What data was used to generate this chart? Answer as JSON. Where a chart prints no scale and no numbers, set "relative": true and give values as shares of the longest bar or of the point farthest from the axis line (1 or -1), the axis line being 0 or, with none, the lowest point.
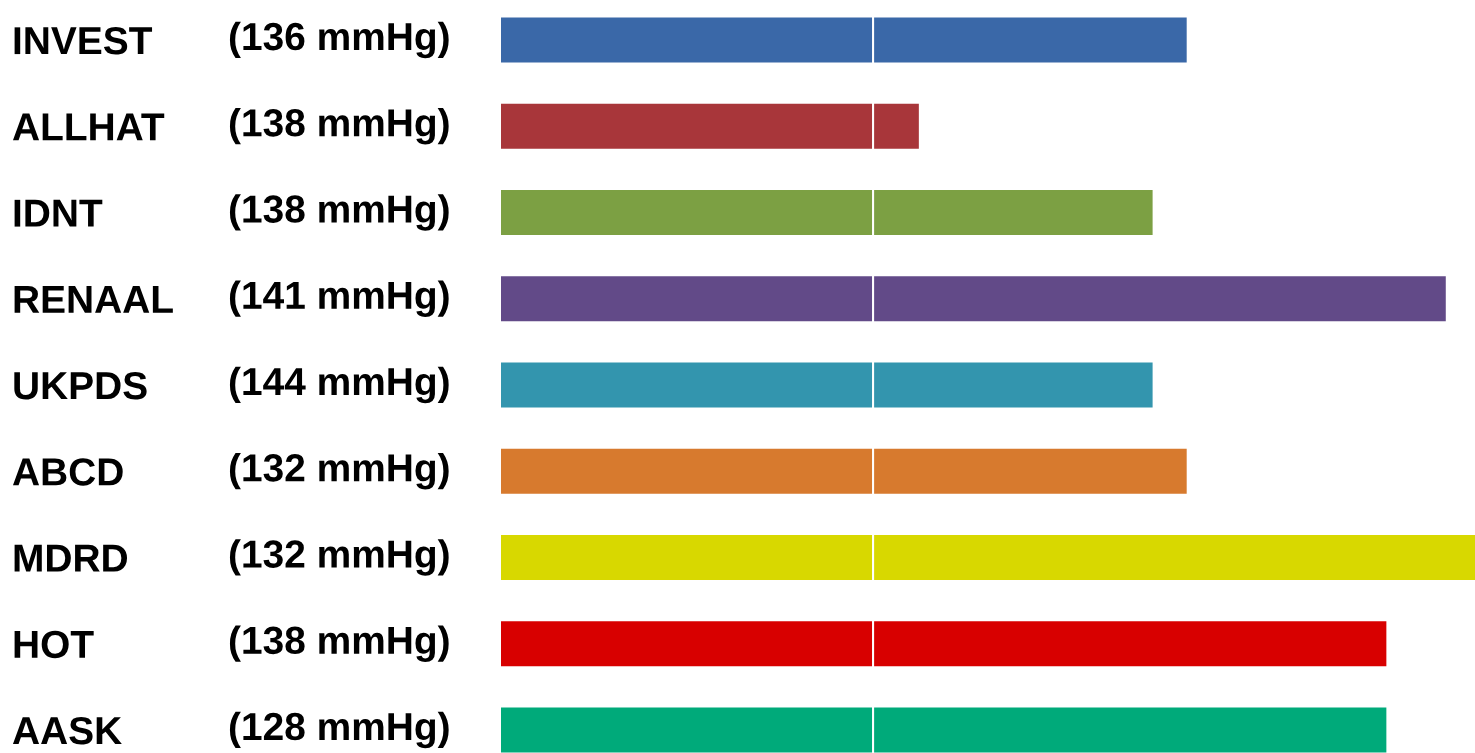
{
  "chart_data": {
    "type": "bar",
    "orientation": "horizontal",
    "relative": true,
    "categories": [
      "INVEST",
      "ALLHAT",
      "IDNT",
      "RENAAL",
      "UKPDS",
      "ABCD",
      "MDRD",
      "HOT",
      "AASK"
    ],
    "values": [
      0.704,
      0.429,
      0.669,
      0.97,
      0.669,
      0.704,
      1,
      0.909,
      0.909
    ],
    "colors": [
      "#3a68a8",
      "#a8363a",
      "#7ca043",
      "#624a88",
      "#3395ae",
      "#d77a2e",
      "#d8d800",
      "#d80000",
      "#00aa7a"
    ],
    "annotations": [
      "(136 mmHg)",
      "(138 mmHg)",
      "(138 mmHg)",
      "(141 mmHg)",
      "(144 mmHg)",
      "(132 mmHg)",
      "(132 mmHg)",
      "(138 mmHg)",
      "(128 mmHg)"
    ],
    "ref_lines": [
      {
        "axis": "x",
        "value": 0.382,
        "color": "#ffffff"
      }
    ]
  }
}
